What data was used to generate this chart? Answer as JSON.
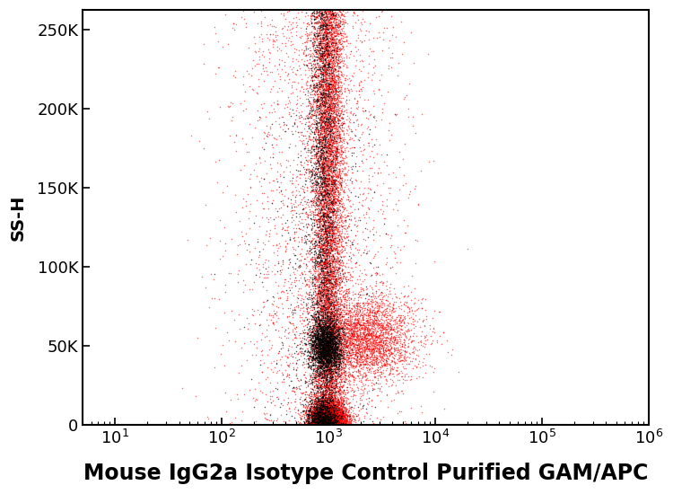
{
  "title": "Mouse IgG2a Isotype Control Purified GAM/APC",
  "ylabel": "SS-H",
  "xlim": [
    5,
    1000000
  ],
  "ylim": [
    0,
    262144
  ],
  "yticks": [
    0,
    50000,
    100000,
    150000,
    200000,
    250000
  ],
  "ytick_labels": [
    "0",
    "50K",
    "100K",
    "150K",
    "200K",
    "250K"
  ],
  "background_color": "#ffffff",
  "red_color": "#ff0000",
  "black_color": "#000000",
  "n_red": 18000,
  "n_black": 6000,
  "seed": 7
}
